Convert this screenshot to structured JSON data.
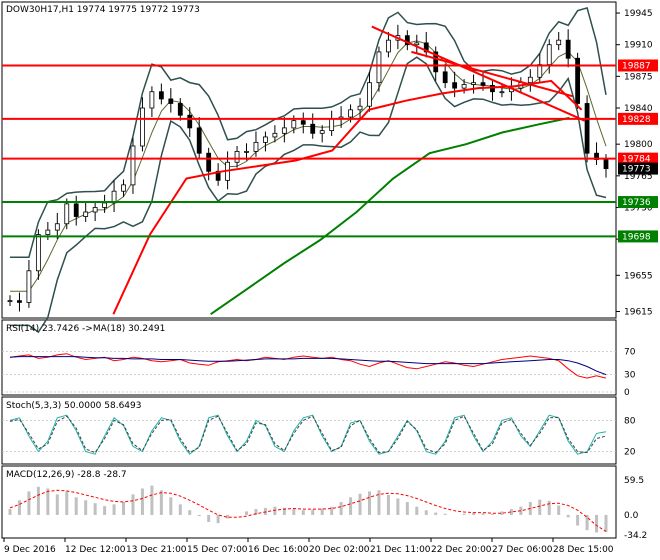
{
  "chart_data": [
    {
      "type": "candlestick",
      "panel": "price",
      "title": "DOW30H17,H1  19774 19775 19772 19773",
      "ylim": [
        19610,
        19955
      ],
      "y_ticks": [
        19945,
        19910,
        19875,
        19840,
        19800,
        19765,
        19730,
        19695,
        19655,
        19615
      ],
      "price_lines": [
        {
          "label": "19887",
          "value": 19887,
          "color": "#ff0000"
        },
        {
          "label": "19828",
          "value": 19828,
          "color": "#ff0000"
        },
        {
          "label": "19784",
          "value": 19784,
          "color": "#ff0000"
        },
        {
          "label": "19736",
          "value": 19736,
          "color": "#008000"
        },
        {
          "label": "19698",
          "value": 19698,
          "color": "#008000"
        }
      ],
      "current_price": {
        "label": "19773",
        "value": 19773
      },
      "close_series": [
        19627,
        19625,
        19660,
        19700,
        19705,
        19712,
        19734,
        19720,
        19725,
        19730,
        19735,
        19748,
        19755,
        19798,
        19840,
        19858,
        19850,
        19845,
        19832,
        19818,
        19790,
        19770,
        19760,
        19780,
        19792,
        19792,
        19802,
        19808,
        19812,
        19818,
        19826,
        19822,
        19812,
        19815,
        19828,
        19830,
        19838,
        19842,
        19868,
        19902,
        19915,
        19920,
        19910,
        19912,
        19902,
        19880,
        19868,
        19862,
        19866,
        19868,
        19865,
        19858,
        19858,
        19862,
        19868,
        19874,
        19888,
        19910,
        19915,
        19895,
        19845,
        19790,
        19783,
        19773
      ],
      "sma200": [
        [
          0.18,
          19612
        ],
        [
          0.24,
          19700
        ],
        [
          0.3,
          19762
        ],
        [
          0.36,
          19770
        ],
        [
          0.42,
          19776
        ],
        [
          0.48,
          19782
        ],
        [
          0.54,
          19793
        ],
        [
          0.6,
          19838
        ],
        [
          0.66,
          19848
        ],
        [
          0.72,
          19856
        ],
        [
          0.78,
          19862
        ],
        [
          0.84,
          19864
        ],
        [
          0.9,
          19870
        ],
        [
          0.95,
          19838
        ]
      ],
      "sma_long": [
        [
          0.34,
          19612
        ],
        [
          0.4,
          19640
        ],
        [
          0.46,
          19668
        ],
        [
          0.52,
          19694
        ],
        [
          0.58,
          19725
        ],
        [
          0.64,
          19762
        ],
        [
          0.7,
          19790
        ],
        [
          0.76,
          19800
        ],
        [
          0.82,
          19813
        ],
        [
          0.88,
          19822
        ],
        [
          0.93,
          19829
        ]
      ],
      "trendlines": [
        [
          [
            0.605,
            19930
          ],
          [
            0.955,
            19826
          ]
        ],
        [
          [
            0.67,
            19902
          ],
          [
            0.935,
            19853
          ]
        ]
      ],
      "red_line_color": "#ff0000",
      "green_line_color": "#008000"
    },
    {
      "type": "line",
      "panel": "rsi",
      "title": "RSI(14) 23.7426  ->MA(18) 30.2491",
      "ylim": [
        0,
        100
      ],
      "y_ticks": [
        70,
        30,
        0
      ],
      "series": [
        {
          "values": [
            60,
            62,
            64,
            58,
            60,
            64,
            66,
            60,
            56,
            58,
            60,
            54,
            56,
            60,
            58,
            54,
            52,
            54,
            56,
            50,
            48,
            46,
            52,
            54,
            56,
            54,
            56,
            60,
            58,
            56,
            60,
            62,
            60,
            58,
            60,
            56,
            54,
            48,
            44,
            50,
            54,
            48,
            42,
            40,
            44,
            48,
            52,
            50,
            46,
            44,
            48,
            52,
            56,
            58,
            60,
            62,
            60,
            58,
            54,
            40,
            28,
            24,
            28,
            24
          ],
          "color": "#ff0000"
        },
        {
          "values": [
            60,
            61,
            61,
            61,
            61,
            61,
            61,
            61,
            60,
            59,
            59,
            58,
            58,
            57,
            57,
            57,
            56,
            56,
            56,
            55,
            54,
            53,
            53,
            53,
            54,
            55,
            56,
            57,
            57,
            57,
            57,
            58,
            58,
            58,
            58,
            57,
            56,
            55,
            54,
            53,
            53,
            52,
            51,
            50,
            49,
            49,
            49,
            49,
            49,
            49,
            49,
            50,
            51,
            52,
            53,
            54,
            55,
            56,
            56,
            54,
            50,
            44,
            36,
            30
          ],
          "color": "#000080"
        }
      ]
    },
    {
      "type": "line",
      "panel": "stoch",
      "title": "Stoch(5,3,3) 50.0000 58.6493",
      "ylim": [
        0,
        100
      ],
      "y_ticks": [
        80,
        20
      ],
      "series": [
        {
          "values": [
            80,
            85,
            50,
            20,
            40,
            85,
            90,
            60,
            20,
            15,
            50,
            85,
            70,
            30,
            20,
            60,
            85,
            80,
            40,
            15,
            30,
            85,
            90,
            50,
            20,
            40,
            80,
            70,
            30,
            20,
            60,
            85,
            90,
            50,
            20,
            30,
            75,
            80,
            40,
            15,
            20,
            50,
            80,
            60,
            20,
            15,
            40,
            85,
            90,
            50,
            20,
            40,
            80,
            85,
            50,
            30,
            60,
            90,
            85,
            40,
            15,
            20,
            55,
            58
          ],
          "color": "#20b2aa"
        },
        {
          "values": [
            78,
            82,
            55,
            25,
            35,
            78,
            88,
            65,
            25,
            18,
            45,
            80,
            72,
            35,
            22,
            55,
            80,
            82,
            45,
            18,
            28,
            80,
            88,
            55,
            22,
            35,
            75,
            72,
            35,
            22,
            55,
            80,
            88,
            55,
            22,
            28,
            70,
            80,
            45,
            18,
            20,
            45,
            78,
            62,
            25,
            18,
            35,
            80,
            88,
            55,
            22,
            35,
            75,
            82,
            55,
            32,
            55,
            85,
            86,
            45,
            20,
            18,
            45,
            50
          ],
          "color": "#404040"
        }
      ]
    },
    {
      "type": "bar",
      "panel": "macd",
      "title": "MACD(12,26,9) -28.8 -28.7",
      "ylim": [
        -34.2,
        59.5
      ],
      "y_ticks": [
        59.5,
        0.0,
        -34.2
      ],
      "histogram": [
        10,
        25,
        40,
        48,
        45,
        35,
        40,
        30,
        25,
        20,
        15,
        18,
        22,
        35,
        45,
        50,
        42,
        30,
        18,
        8,
        -2,
        -12,
        -14,
        -6,
        0,
        6,
        10,
        12,
        14,
        12,
        10,
        8,
        9,
        11,
        14,
        22,
        30,
        36,
        40,
        42,
        34,
        28,
        22,
        14,
        8,
        4,
        2,
        0,
        2,
        4,
        3,
        2,
        6,
        10,
        14,
        22,
        26,
        24,
        16,
        -4,
        -18,
        -26,
        -30,
        -29
      ],
      "signal": [
        12,
        18,
        26,
        34,
        40,
        42,
        41,
        38,
        34,
        30,
        26,
        23,
        22,
        24,
        28,
        34,
        38,
        37,
        32,
        25,
        17,
        8,
        0,
        -4,
        -4,
        -2,
        2,
        5,
        8,
        10,
        11,
        10,
        10,
        10,
        11,
        14,
        19,
        24,
        30,
        35,
        37,
        36,
        33,
        28,
        22,
        16,
        11,
        7,
        5,
        4,
        4,
        3,
        3,
        5,
        7,
        11,
        15,
        19,
        20,
        16,
        8,
        -4,
        -18,
        -28
      ],
      "hist_color": "#c0c0c0",
      "signal_color": "#ff0000"
    }
  ],
  "x_axis": {
    "tick_labels": [
      "9 Dec 2016",
      "12 Dec 12:00",
      "13 Dec 21:00",
      "15 Dec 07:00",
      "16 Dec 16:00",
      "20 Dec 02:00",
      "21 Dec 11:00",
      "22 Dec 20:00",
      "27 Dec 06:00",
      "28 Dec 15:00"
    ]
  }
}
